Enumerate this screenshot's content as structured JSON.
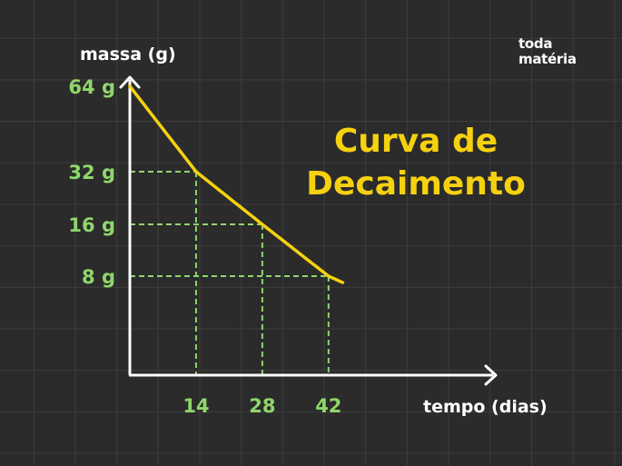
{
  "logo": {
    "line1": "toda",
    "line2": "matéria"
  },
  "chart_data": {
    "type": "line",
    "title": "Curva de Decaimento",
    "title_lines": [
      "Curva de",
      "Decaimento"
    ],
    "xlabel": "tempo (dias)",
    "ylabel": "massa (g)",
    "x_ticks": [
      14,
      28,
      42
    ],
    "y_ticks": [
      {
        "value": 64,
        "label": "64 g"
      },
      {
        "value": 32,
        "label": "32 g"
      },
      {
        "value": 16,
        "label": "16 g"
      },
      {
        "value": 8,
        "label": "8 g"
      }
    ],
    "series": [
      {
        "x": [
          0,
          14,
          28,
          42,
          45
        ],
        "y": [
          64,
          32,
          16,
          8,
          6.9
        ]
      }
    ],
    "guides": [
      {
        "x": 14,
        "y": 32
      },
      {
        "x": 28,
        "y": 16
      },
      {
        "x": 42,
        "y": 8
      }
    ],
    "grid": true,
    "colors": {
      "curve": "#f5d10f",
      "guides": "#8fd66b",
      "axes": "#ffffff",
      "title": "#f5d10f",
      "tick_labels": "#8fd66b"
    }
  }
}
